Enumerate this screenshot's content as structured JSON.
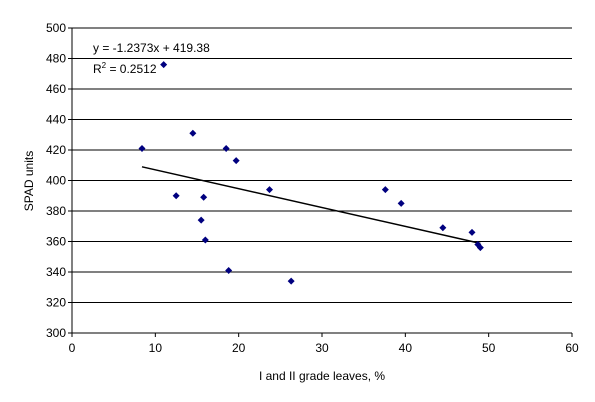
{
  "chart_data": {
    "type": "scatter",
    "xlabel": "I and II grade leaves, %",
    "ylabel": "SPAD units",
    "xlim": [
      0,
      60
    ],
    "ylim": [
      300,
      500
    ],
    "x_ticks": [
      0,
      10,
      20,
      30,
      40,
      50,
      60
    ],
    "y_ticks": [
      300,
      320,
      340,
      360,
      380,
      400,
      420,
      440,
      460,
      480,
      500
    ],
    "grid": "horizontal",
    "legend": "none",
    "marker_color": "#00007f",
    "series": [
      {
        "points": [
          {
            "x": 8.4,
            "y": 421
          },
          {
            "x": 11.0,
            "y": 476
          },
          {
            "x": 12.5,
            "y": 390
          },
          {
            "x": 14.5,
            "y": 431
          },
          {
            "x": 15.5,
            "y": 374
          },
          {
            "x": 15.8,
            "y": 389
          },
          {
            "x": 16.0,
            "y": 361
          },
          {
            "x": 18.5,
            "y": 421
          },
          {
            "x": 18.8,
            "y": 341
          },
          {
            "x": 19.7,
            "y": 413
          },
          {
            "x": 23.7,
            "y": 394
          },
          {
            "x": 26.3,
            "y": 334
          },
          {
            "x": 37.6,
            "y": 394
          },
          {
            "x": 39.5,
            "y": 385
          },
          {
            "x": 44.5,
            "y": 369
          },
          {
            "x": 48.0,
            "y": 366
          },
          {
            "x": 48.7,
            "y": 358
          },
          {
            "x": 49.0,
            "y": 356
          }
        ]
      }
    ],
    "trendline": {
      "slope": -1.2373,
      "intercept": 419.38,
      "x_range": [
        8.4,
        49.0
      ],
      "color": "#000000"
    },
    "annotations": {
      "equation": "y = -1.2373x + 419.38",
      "r2_prefix": "R",
      "r2_exponent": "2",
      "r2_value": " = 0.2512"
    }
  }
}
